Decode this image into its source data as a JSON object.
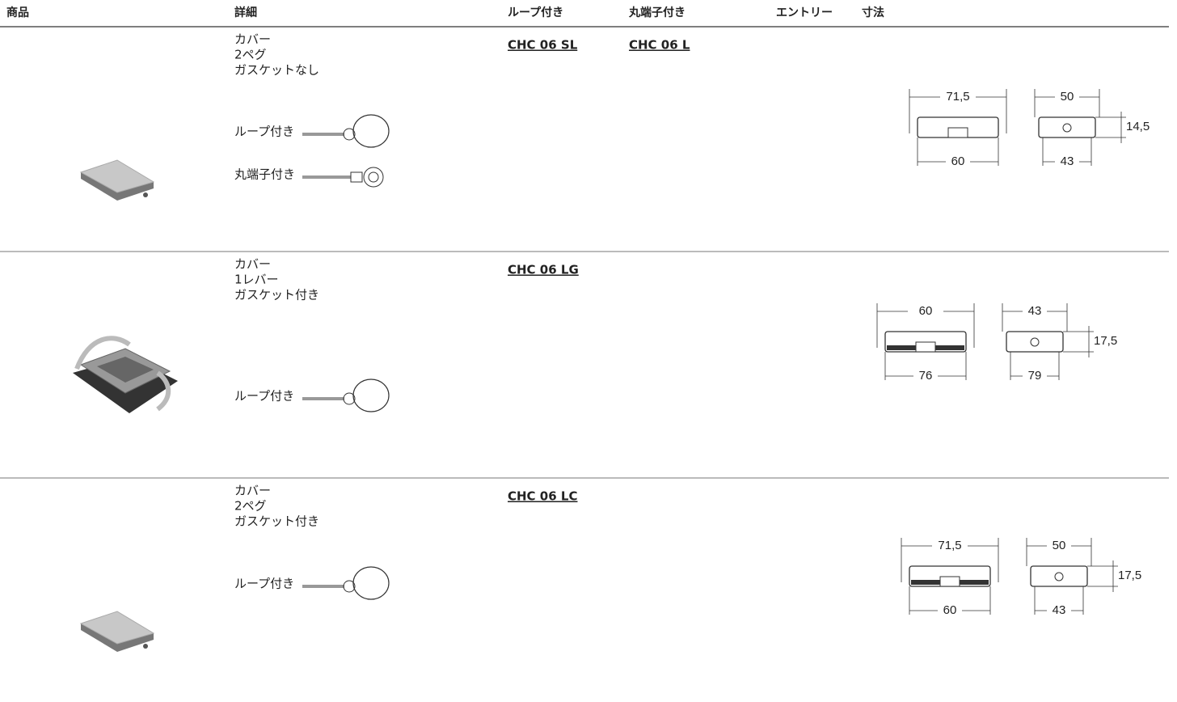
{
  "header": {
    "columns": [
      "商品",
      "詳細",
      "ループ付き",
      "丸端子付き",
      "エントリー",
      "寸法"
    ]
  },
  "rows": [
    {
      "details": [
        "カバー",
        "2ペグ",
        "ガスケットなし"
      ],
      "accessories": [
        "ループ付き",
        "丸端子付き"
      ],
      "loop_code": "CHC 06 SL",
      "ring_code": "CHC 06 L",
      "dimensions": [
        "71,5",
        "50",
        "14,5",
        "60",
        "43"
      ]
    },
    {
      "details": [
        "カバー",
        "1レバー",
        "ガスケット付き"
      ],
      "accessories": [
        "ループ付き"
      ],
      "loop_code": "CHC 06 LG",
      "dimensions": [
        "60",
        "43",
        "17,5",
        "76",
        "79"
      ]
    },
    {
      "details": [
        "カバー",
        "2ペグ",
        "ガスケット付き"
      ],
      "accessories": [
        "ループ付き"
      ],
      "loop_code": "CHC 06 LC",
      "dimensions": [
        "71,5",
        "50",
        "17,5",
        "60",
        "43"
      ]
    }
  ]
}
